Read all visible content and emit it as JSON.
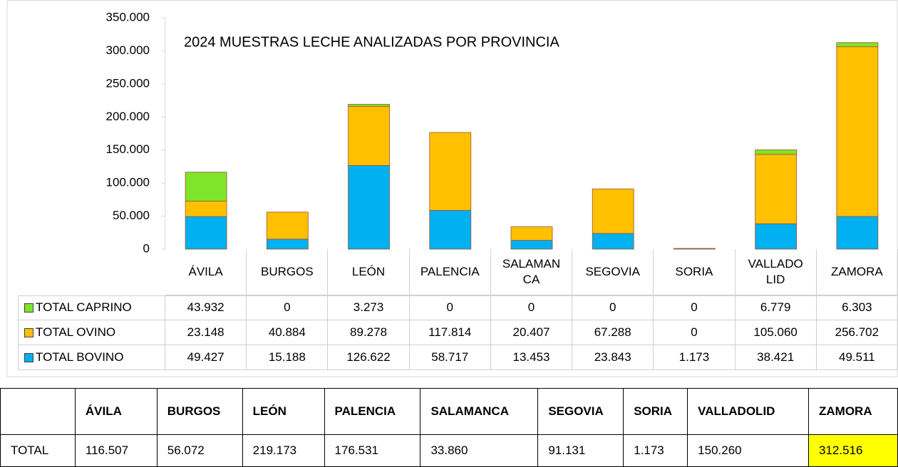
{
  "chart_data": {
    "type": "stacked_bar",
    "title": "2024 MUESTRAS LECHE ANALIZADAS POR  PROVINCIA",
    "categories": [
      "ÁVILA",
      "BURGOS",
      "LEÓN",
      "PALENCIA",
      "SALAMANCA",
      "SEGOVIA",
      "SORIA",
      "VALLADOLID",
      "ZAMORA"
    ],
    "series": [
      {
        "name": "TOTAL BOVINO",
        "color": "#00b0f0",
        "values": [
          49427,
          15188,
          126622,
          58717,
          13453,
          23843,
          1173,
          38421,
          49511
        ],
        "value_labels": [
          "49.427",
          "15.188",
          "126.622",
          "58.717",
          "13.453",
          "23.843",
          "1.173",
          "38.421",
          "49.511"
        ]
      },
      {
        "name": "TOTAL OVINO",
        "color": "#ffc000",
        "values": [
          23148,
          40884,
          89278,
          117814,
          20407,
          67288,
          0,
          105060,
          256702
        ],
        "value_labels": [
          "23.148",
          "40.884",
          "89.278",
          "117.814",
          "20.407",
          "67.288",
          "0",
          "105.060",
          "256.702"
        ]
      },
      {
        "name": "TOTAL CAPRINO",
        "color": "#7fe52a",
        "values": [
          43932,
          0,
          3273,
          0,
          0,
          0,
          0,
          6779,
          6303
        ],
        "value_labels": [
          "43.932",
          "0",
          "3.273",
          "0",
          "0",
          "0",
          "0",
          "6.779",
          "6.303"
        ]
      }
    ],
    "ylim": [
      0,
      350000
    ],
    "yticks": [
      0,
      {
        "value": 50000,
        "label": "50.000"
      },
      {
        "value": 100000,
        "label": "100.000"
      },
      {
        "value": 150000,
        "label": "150.000"
      },
      {
        "value": 200000,
        "label": "200.000"
      },
      {
        "value": 250000,
        "label": "250.000"
      },
      {
        "value": 300000,
        "label": "300.000"
      },
      {
        "value": 350000,
        "label": "350.000"
      }
    ],
    "grid": false
  },
  "totals_table": {
    "columns": [
      "ÁVILA",
      "BURGOS",
      "LEÓN",
      "PALENCIA",
      "SALAMANCA",
      "SEGOVIA",
      "SORIA",
      "VALLADOLID",
      "ZAMORA"
    ],
    "row_label": "TOTAL",
    "values": [
      "116.507",
      "56.072",
      "219.173",
      "176.531",
      "33.860",
      "91.131",
      "1.173",
      "150.260",
      "312.516"
    ]
  }
}
